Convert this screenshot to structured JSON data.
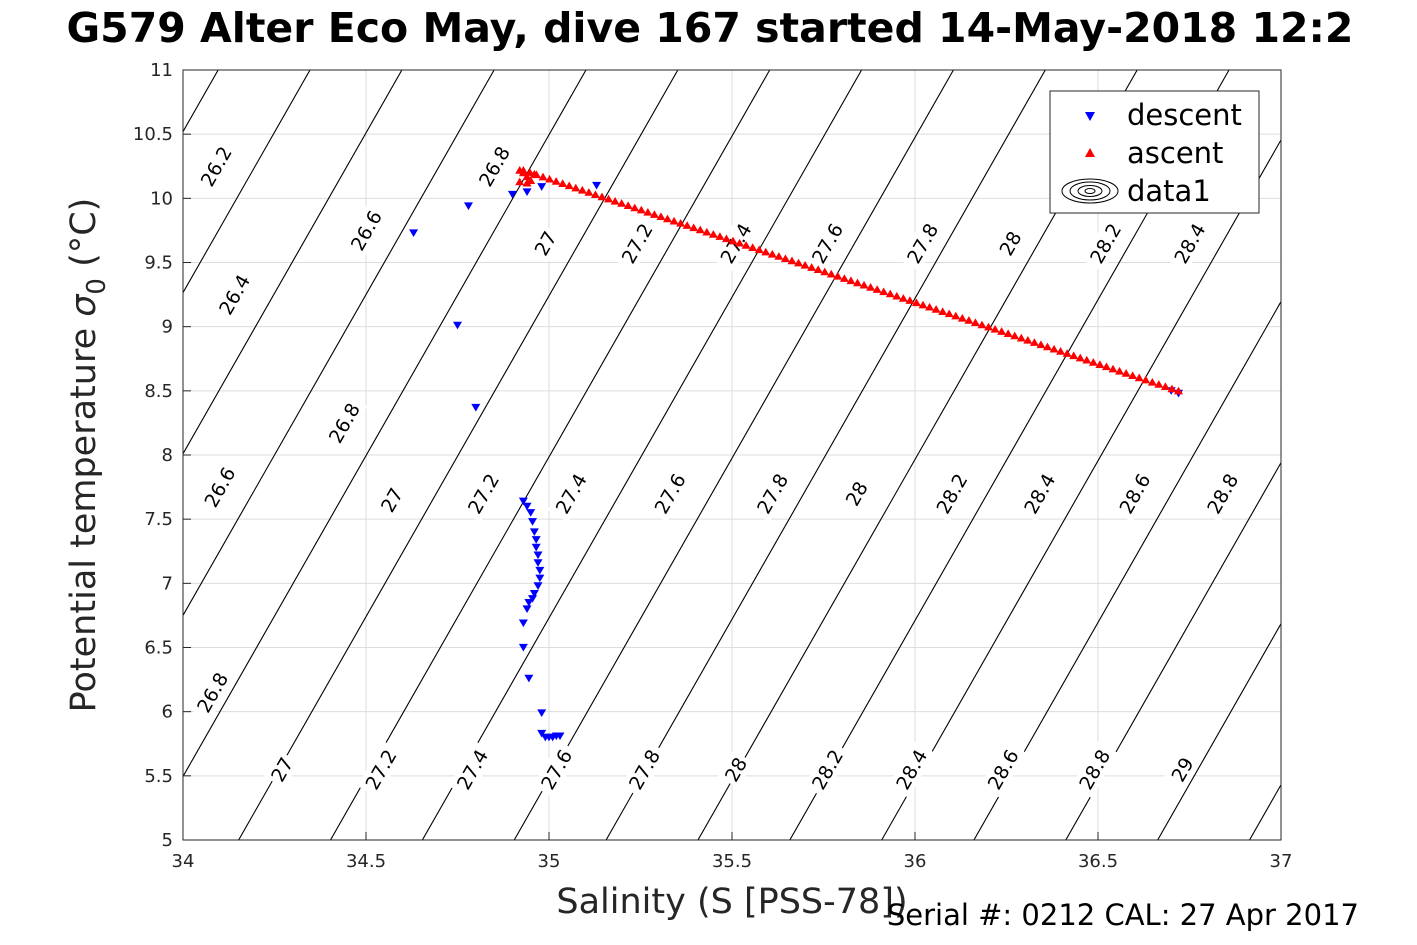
{
  "title": "G579 Alter Eco May, dive 167 started 14-May-2018 12:2",
  "footer_note": "Serial #: 0212  CAL: 27 Apr 2017",
  "chart_data": {
    "type": "scatter",
    "title": "G579 Alter Eco May, dive 167 started 14-May-2018 12:2",
    "xlabel": "Salinity (S [PSS-78])",
    "ylabel": "Potential temperature σ0 (°C)",
    "xlim": [
      34,
      37
    ],
    "ylim": [
      5,
      11
    ],
    "xticks": [
      "34",
      "34.5",
      "35",
      "35.5",
      "36",
      "36.5",
      "37"
    ],
    "yticks": [
      "5",
      "5.5",
      "6",
      "6.5",
      "7",
      "7.5",
      "8",
      "8.5",
      "9",
      "9.5",
      "10",
      "10.5",
      "11"
    ],
    "grid": true,
    "legend": {
      "position": "top-right",
      "entries": [
        {
          "label": "descent",
          "color": "#0000ff",
          "marker": "triangle-down"
        },
        {
          "label": "ascent",
          "color": "#ff0000",
          "marker": "triangle-up"
        },
        {
          "label": "data1",
          "color": "#000000",
          "marker": "contour"
        }
      ]
    },
    "series": [
      {
        "name": "descent",
        "color": "#0000ff",
        "marker": "triangle-down",
        "points": [
          [
            34.63,
            9.73
          ],
          [
            34.75,
            9.01
          ],
          [
            34.78,
            9.94
          ],
          [
            34.8,
            8.37
          ],
          [
            34.9,
            10.03
          ],
          [
            34.94,
            10.05
          ],
          [
            34.98,
            10.09
          ],
          [
            35.13,
            10.1
          ],
          [
            34.93,
            7.64
          ],
          [
            34.94,
            7.6
          ],
          [
            34.95,
            7.55
          ],
          [
            34.955,
            7.48
          ],
          [
            34.96,
            7.4
          ],
          [
            34.965,
            7.34
          ],
          [
            34.965,
            7.28
          ],
          [
            34.97,
            7.22
          ],
          [
            34.97,
            7.16
          ],
          [
            34.975,
            7.1
          ],
          [
            34.975,
            7.04
          ],
          [
            34.97,
            6.98
          ],
          [
            34.96,
            6.92
          ],
          [
            34.955,
            6.88
          ],
          [
            34.945,
            6.85
          ],
          [
            34.94,
            6.8
          ],
          [
            34.93,
            6.69
          ],
          [
            34.93,
            6.5
          ],
          [
            34.945,
            6.26
          ],
          [
            34.98,
            5.99
          ],
          [
            34.98,
            5.83
          ],
          [
            34.99,
            5.8
          ],
          [
            35.0,
            5.8
          ],
          [
            35.01,
            5.8
          ],
          [
            35.02,
            5.81
          ],
          [
            35.03,
            5.81
          ],
          [
            36.7,
            8.5
          ],
          [
            36.72,
            8.48
          ]
        ]
      },
      {
        "name": "ascent",
        "color": "#ff0000",
        "marker": "triangle-up",
        "points": [
          [
            34.92,
            10.22
          ],
          [
            34.93,
            10.2
          ],
          [
            34.94,
            10.12
          ],
          [
            34.94,
            10.17
          ],
          [
            34.95,
            10.14
          ],
          [
            34.96,
            10.19
          ],
          [
            34.92,
            10.13
          ]
        ],
        "line_from": [
          34.93,
          10.22
        ],
        "line_to": [
          36.72,
          8.5
        ],
        "line_count": 100
      }
    ],
    "contours": [
      {
        "level": "26.2",
        "s_at_5": 32.645
      },
      {
        "level": "26.4",
        "s_at_5": 32.896
      },
      {
        "level": "26.6",
        "s_at_5": 33.147
      },
      {
        "level": "26.8",
        "s_at_5": 33.398
      },
      {
        "level": "27",
        "s_at_5": 33.65
      },
      {
        "level": "27.2",
        "s_at_5": 33.901
      },
      {
        "level": "27.4",
        "s_at_5": 34.152
      },
      {
        "level": "27.6",
        "s_at_5": 34.403
      },
      {
        "level": "27.8",
        "s_at_5": 34.654
      },
      {
        "level": "28",
        "s_at_5": 34.905
      },
      {
        "level": "28.2",
        "s_at_5": 35.156
      },
      {
        "level": "28.4",
        "s_at_5": 35.407
      },
      {
        "level": "28.6",
        "s_at_5": 35.658
      },
      {
        "level": "28.8",
        "s_at_5": 35.909
      },
      {
        "level": "29",
        "s_at_5": 36.161
      },
      {
        "level": "29.2",
        "s_at_5": 36.412
      },
      {
        "level": "29.4",
        "s_at_5": 36.663
      },
      {
        "level": "29.6",
        "s_at_5": 36.914
      }
    ],
    "contour_slope_dS_dT": 0.2,
    "contour_labels": [
      {
        "text": "26.2",
        "s": 34.09,
        "t": 10.25
      },
      {
        "text": "26.4",
        "s": 34.14,
        "t": 9.25
      },
      {
        "text": "26.6",
        "s": 34.1,
        "t": 7.75
      },
      {
        "text": "26.8",
        "s": 34.08,
        "t": 6.15
      },
      {
        "text": "26.6",
        "s": 34.5,
        "t": 9.75
      },
      {
        "text": "26.8",
        "s": 34.44,
        "t": 8.25
      },
      {
        "text": "27",
        "s": 34.57,
        "t": 7.65
      },
      {
        "text": "27",
        "s": 34.27,
        "t": 5.55
      },
      {
        "text": "26.8",
        "s": 34.85,
        "t": 10.25
      },
      {
        "text": "27",
        "s": 34.99,
        "t": 9.65
      },
      {
        "text": "27.2",
        "s": 34.82,
        "t": 7.7
      },
      {
        "text": "27.2",
        "s": 34.54,
        "t": 5.55
      },
      {
        "text": "27.2",
        "s": 35.24,
        "t": 9.65
      },
      {
        "text": "27.4",
        "s": 35.06,
        "t": 7.7
      },
      {
        "text": "27.4",
        "s": 34.79,
        "t": 5.55
      },
      {
        "text": "27.6",
        "s": 35.02,
        "t": 5.55
      },
      {
        "text": "27.4",
        "s": 35.51,
        "t": 9.65
      },
      {
        "text": "27.6",
        "s": 35.33,
        "t": 7.7
      },
      {
        "text": "27.8",
        "s": 35.26,
        "t": 5.55
      },
      {
        "text": "27.6",
        "s": 35.76,
        "t": 9.65
      },
      {
        "text": "27.8",
        "s": 35.61,
        "t": 7.7
      },
      {
        "text": "28",
        "s": 35.51,
        "t": 5.55
      },
      {
        "text": "27.8",
        "s": 36.02,
        "t": 9.65
      },
      {
        "text": "28",
        "s": 35.84,
        "t": 7.7
      },
      {
        "text": "28.2",
        "s": 35.76,
        "t": 5.55
      },
      {
        "text": "28",
        "s": 36.26,
        "t": 9.65
      },
      {
        "text": "28.2",
        "s": 36.1,
        "t": 7.7
      },
      {
        "text": "28.4",
        "s": 35.99,
        "t": 5.55
      },
      {
        "text": "28.2",
        "s": 36.52,
        "t": 9.65
      },
      {
        "text": "28.4",
        "s": 36.34,
        "t": 7.7
      },
      {
        "text": "28.6",
        "s": 36.24,
        "t": 5.55
      },
      {
        "text": "28.4",
        "s": 36.75,
        "t": 9.65
      },
      {
        "text": "28.6",
        "s": 36.6,
        "t": 7.7
      },
      {
        "text": "28.8",
        "s": 36.49,
        "t": 5.55
      },
      {
        "text": "28.8",
        "s": 36.84,
        "t": 7.7
      },
      {
        "text": "29",
        "s": 36.73,
        "t": 5.55
      }
    ]
  }
}
